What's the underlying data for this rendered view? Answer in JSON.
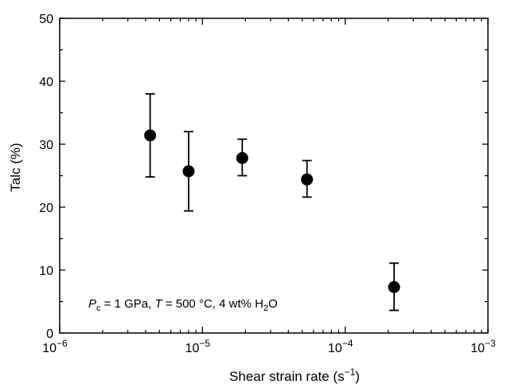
{
  "chart_data": {
    "type": "scatter",
    "xscale": "log",
    "xlim": [
      1e-06,
      0.001
    ],
    "ylim": [
      0,
      50
    ],
    "yticks": [
      0,
      10,
      20,
      30,
      40,
      50
    ],
    "xticks": [
      {
        "value": 1e-06,
        "base": "10",
        "exp": "−6"
      },
      {
        "value": 1e-05,
        "base": "10",
        "exp": "−5"
      },
      {
        "value": 0.0001,
        "base": "10",
        "exp": "−4"
      },
      {
        "value": 0.001,
        "base": "10",
        "exp": "−3"
      }
    ],
    "xlabel": {
      "main": "Shear strain rate (s",
      "sup": "−1",
      "close": ")"
    },
    "ylabel": "Talc (%)",
    "grid": false,
    "marker_color": "#000000",
    "points": [
      {
        "x": 4.3e-06,
        "y": 31.4,
        "y_low": 24.8,
        "y_high": 38.0
      },
      {
        "x": 8e-06,
        "y": 25.7,
        "y_low": 19.4,
        "y_high": 32.0
      },
      {
        "x": 1.9e-05,
        "y": 27.8,
        "y_low": 25.0,
        "y_high": 30.8
      },
      {
        "x": 5.4e-05,
        "y": 24.4,
        "y_low": 21.6,
        "y_high": 27.4
      },
      {
        "x": 0.00022,
        "y": 7.3,
        "y_low": 3.6,
        "y_high": 11.1
      }
    ],
    "annotation": {
      "p_symbol": "P",
      "p_sub": "c",
      "p_rest": " = 1 GPa, ",
      "t_symbol": "T",
      "t_rest": " = 500 °C, 4 wt% H",
      "h2o_sub": "2",
      "h2o_end": "O"
    }
  }
}
